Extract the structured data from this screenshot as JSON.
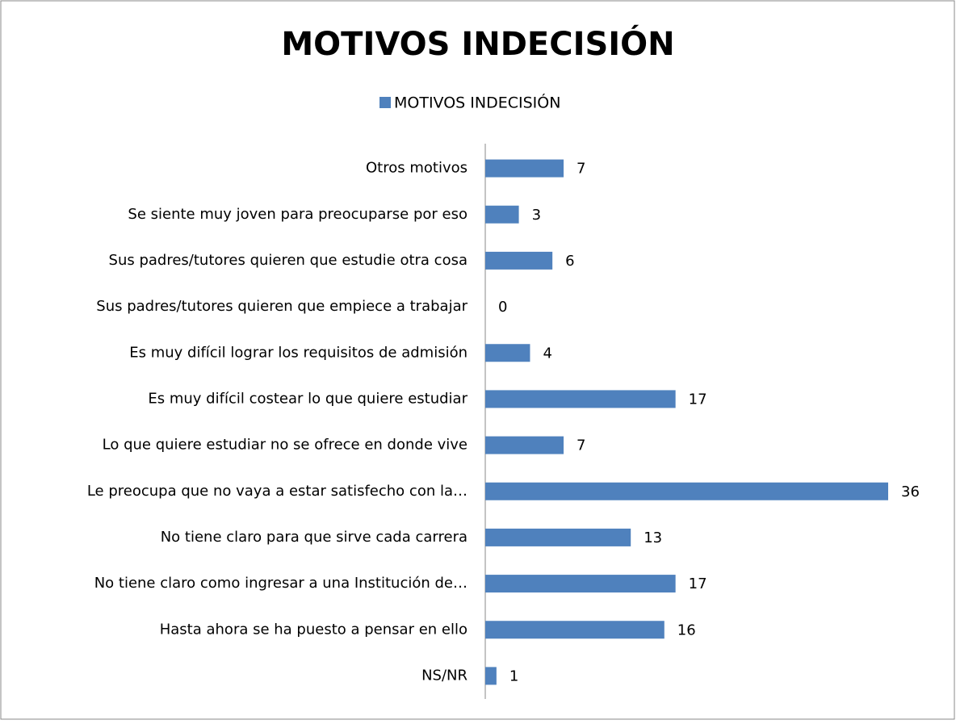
{
  "chart_data": {
    "type": "barh",
    "title": "MOTIVOS INDECISIÓN",
    "categories": [
      "Otros motivos",
      "Se siente muy joven para preocuparse por eso",
      "Sus padres/tutores quieren que estudie otra cosa",
      "Sus padres/tutores quieren que empiece a trabajar",
      "Es muy difícil lograr los requisitos de admisión",
      "Es muy difícil costear lo que quiere estudiar",
      "Lo que quiere estudiar no se ofrece en donde vive",
      "Le preocupa que no vaya a estar satisfecho con la…",
      "No tiene claro para que sirve cada carrera",
      "No tiene claro como ingresar a una Institución de…",
      "Hasta ahora se ha puesto a pensar en ello",
      "NS/NR"
    ],
    "series": [
      {
        "name": "MOTIVOS INDECISIÓN",
        "color": "#4f81bd",
        "values": [
          7,
          3,
          6,
          0,
          4,
          17,
          7,
          36,
          13,
          17,
          16,
          1
        ]
      }
    ]
  }
}
